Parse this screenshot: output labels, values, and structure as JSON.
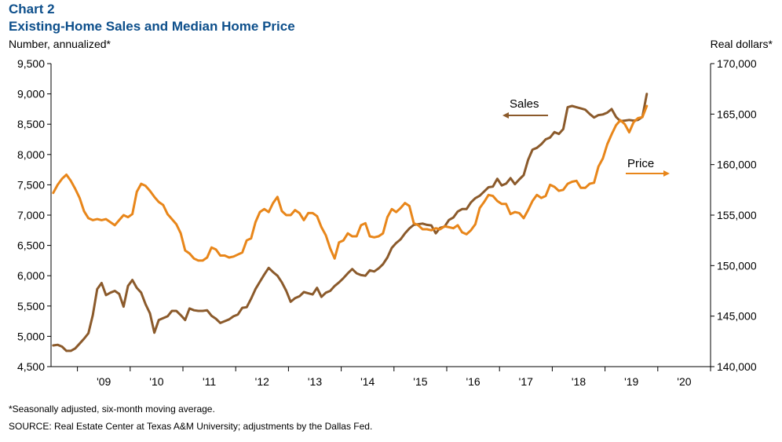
{
  "header": {
    "chart_number": "Chart 2",
    "title": "Existing-Home Sales and Median Home Price",
    "left_axis_unit": "Number, annualized*",
    "right_axis_unit": "Real dollars*"
  },
  "footer": {
    "note": "*Seasonally adjusted, six-month moving average.",
    "source": "SOURCE: Real Estate Center at Texas A&M University; adjustments by the Dallas Fed."
  },
  "colors": {
    "sales": "#8b5a2b",
    "price": "#e8861a",
    "axis": "#000000"
  },
  "chart_data": {
    "type": "line",
    "x_tick_labels": [
      "'09",
      "'10",
      "'11",
      "'12",
      "'13",
      "'14",
      "'15",
      "'16",
      "'17",
      "'18",
      "'19",
      "'20"
    ],
    "left_ylim": [
      4500,
      9500
    ],
    "left_ticks": [
      4500,
      5000,
      5500,
      6000,
      6500,
      7000,
      7500,
      8000,
      8500,
      9000,
      9500
    ],
    "left_tick_labels": [
      "4,500",
      "5,000",
      "5,500",
      "6,000",
      "6,500",
      "7,000",
      "7,500",
      "8,000",
      "8,500",
      "9,000",
      "9,500"
    ],
    "right_ylim": [
      140000,
      170000
    ],
    "right_ticks": [
      140000,
      145000,
      150000,
      155000,
      160000,
      165000,
      170000
    ],
    "right_tick_labels": [
      "140,000",
      "145,000",
      "150,000",
      "155,000",
      "160,000",
      "165,000",
      "170,000"
    ],
    "annotations": {
      "sales": "Sales",
      "price": "Price"
    },
    "series": [
      {
        "name": "Sales",
        "axis": "left",
        "start": "2008-07",
        "values": [
          4850,
          4860,
          4830,
          4760,
          4760,
          4800,
          4880,
          4960,
          5050,
          5350,
          5780,
          5880,
          5680,
          5720,
          5750,
          5700,
          5490,
          5830,
          5930,
          5800,
          5720,
          5530,
          5380,
          5060,
          5270,
          5300,
          5330,
          5420,
          5420,
          5350,
          5270,
          5460,
          5430,
          5420,
          5420,
          5430,
          5340,
          5290,
          5220,
          5250,
          5280,
          5330,
          5360,
          5470,
          5480,
          5620,
          5780,
          5900,
          6020,
          6130,
          6060,
          6000,
          5890,
          5750,
          5570,
          5630,
          5660,
          5730,
          5710,
          5690,
          5800,
          5650,
          5720,
          5750,
          5830,
          5890,
          5960,
          6040,
          6110,
          6040,
          6010,
          6000,
          6090,
          6070,
          6120,
          6190,
          6300,
          6460,
          6540,
          6600,
          6700,
          6780,
          6840,
          6850,
          6860,
          6840,
          6830,
          6700,
          6790,
          6810,
          6920,
          6960,
          7060,
          7100,
          7100,
          7210,
          7280,
          7320,
          7390,
          7460,
          7470,
          7600,
          7490,
          7520,
          7610,
          7510,
          7590,
          7660,
          7910,
          8080,
          8110,
          8170,
          8250,
          8280,
          8370,
          8340,
          8420,
          8780,
          8800,
          8780,
          8760,
          8740,
          8670,
          8610,
          8650,
          8660,
          8690,
          8750,
          8620,
          8550,
          8560,
          8570,
          8560,
          8570,
          8620,
          9000
        ]
      },
      {
        "name": "Price",
        "axis": "right",
        "start": "2008-07",
        "values": [
          157200,
          158000,
          158600,
          159000,
          158400,
          157600,
          156700,
          155400,
          154700,
          154500,
          154600,
          154500,
          154600,
          154300,
          154000,
          154500,
          155000,
          154800,
          155100,
          157300,
          158100,
          157900,
          157400,
          156800,
          156300,
          156000,
          155100,
          154600,
          154100,
          153200,
          151500,
          151200,
          150700,
          150500,
          150500,
          150800,
          151800,
          151600,
          151000,
          151000,
          150800,
          150900,
          151100,
          151300,
          152500,
          152700,
          154300,
          155300,
          155600,
          155300,
          156200,
          156800,
          155400,
          155000,
          155000,
          155500,
          155200,
          154500,
          155200,
          155200,
          154900,
          153800,
          153000,
          151700,
          150700,
          152300,
          152500,
          153200,
          152900,
          152900,
          154000,
          154200,
          152900,
          152800,
          152900,
          153200,
          154800,
          155600,
          155300,
          155700,
          156200,
          155900,
          154200,
          154000,
          153600,
          153600,
          153500,
          153700,
          153600,
          153900,
          153800,
          153700,
          154000,
          153300,
          153100,
          153500,
          154100,
          155700,
          156300,
          157000,
          156900,
          156400,
          156100,
          156100,
          155100,
          155300,
          155200,
          154700,
          155500,
          156400,
          157000,
          156700,
          156900,
          158000,
          157800,
          157400,
          157500,
          158100,
          158300,
          158400,
          157700,
          157700,
          158100,
          158200,
          159800,
          160600,
          162000,
          163000,
          163900,
          164400,
          164000,
          163200,
          164200,
          164600,
          164700,
          165800
        ]
      }
    ]
  }
}
